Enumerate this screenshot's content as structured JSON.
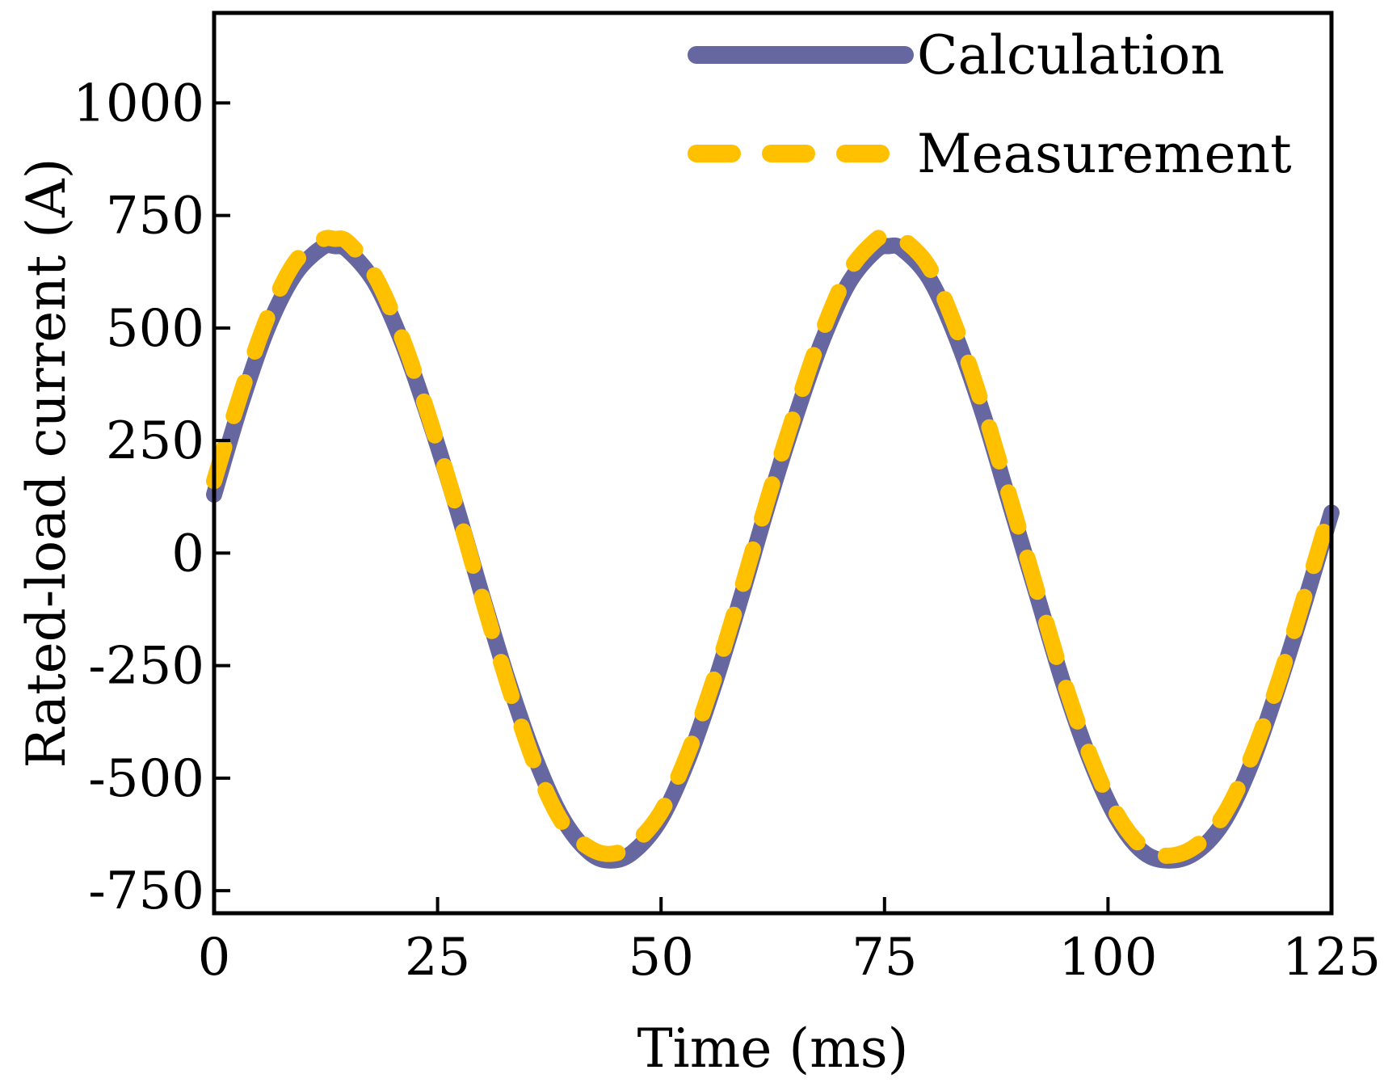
{
  "chart_data": {
    "type": "line",
    "title": "",
    "xlabel": "Time (ms)",
    "ylabel": "Rated-load current (A)",
    "xlim": [
      0,
      125
    ],
    "ylim": [
      -800,
      1200
    ],
    "xticks": [
      0,
      25,
      50,
      75,
      100,
      125
    ],
    "yticks": [
      -750,
      -500,
      -250,
      0,
      250,
      500,
      750,
      1000
    ],
    "xtick_labels": [
      "0",
      "25",
      "50",
      "75",
      "100",
      "125"
    ],
    "ytick_labels": [
      "-750",
      "-500",
      "-250",
      "0",
      "250",
      "500",
      "750",
      "1000"
    ],
    "grid": false,
    "legend_position": "top-right",
    "series": [
      {
        "name": "Calculation",
        "style": "solid",
        "color": "#6667a1",
        "x": [
          0,
          3,
          6,
          9,
          12,
          13.5,
          15,
          18,
          21,
          24,
          27,
          30,
          33,
          36,
          39,
          42,
          44.5,
          47,
          50,
          53,
          56,
          59,
          62,
          65,
          68,
          71,
          74,
          75.5,
          77,
          80,
          83,
          86,
          89,
          92,
          95,
          98,
          101,
          104,
          107,
          110,
          113,
          116,
          119,
          122,
          125
        ],
        "y": [
          130,
          330,
          500,
          618,
          678,
          682,
          672,
          600,
          470,
          300,
          110,
          -95,
          -290,
          -460,
          -590,
          -665,
          -683,
          -662,
          -590,
          -460,
          -290,
          -95,
          110,
          300,
          470,
          600,
          672,
          682,
          675,
          610,
          480,
          310,
          110,
          -90,
          -290,
          -460,
          -590,
          -665,
          -683,
          -662,
          -595,
          -470,
          -300,
          -110,
          90
        ]
      },
      {
        "name": "Measurement",
        "style": "dashed",
        "color": "#ffc000",
        "x": [
          0,
          3,
          6,
          9,
          12,
          13.5,
          15,
          18,
          21,
          24,
          27,
          30,
          33,
          36,
          39,
          42,
          44.5,
          47,
          50,
          53,
          56,
          59,
          62,
          65,
          68,
          71,
          74,
          75.5,
          77,
          80,
          83,
          86,
          89,
          92,
          95,
          98,
          101,
          104,
          107,
          110,
          113,
          116,
          119,
          122,
          125
        ],
        "y": [
          160,
          355,
          525,
          645,
          695,
          698,
          690,
          615,
          480,
          305,
          110,
          -100,
          -300,
          -475,
          -600,
          -655,
          -668,
          -645,
          -575,
          -445,
          -275,
          -80,
          125,
          315,
          490,
          625,
          695,
          705,
          698,
          635,
          500,
          325,
          125,
          -80,
          -280,
          -450,
          -580,
          -655,
          -672,
          -648,
          -580,
          -455,
          -290,
          -95,
          105
        ]
      }
    ]
  }
}
